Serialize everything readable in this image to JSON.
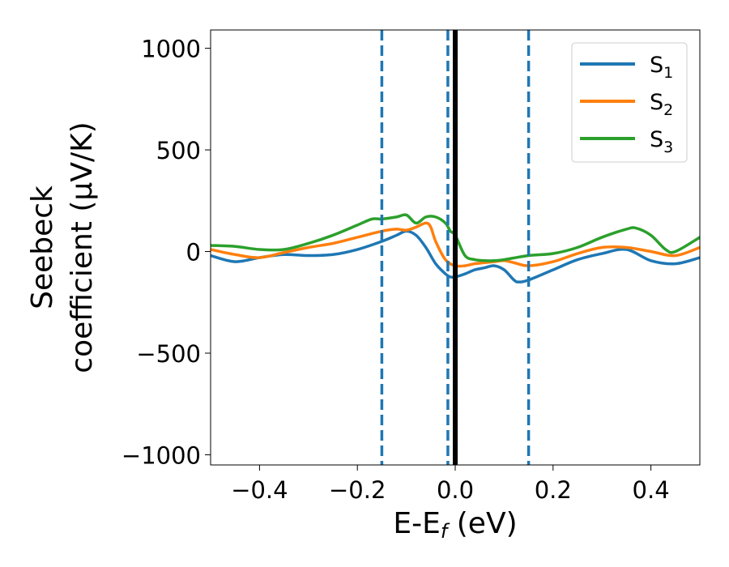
{
  "chart_data": {
    "type": "line",
    "xlabel": {
      "main": "E-E",
      "sub": "f",
      "suffix": " (eV)"
    },
    "ylabel": {
      "line1": "Seebeck",
      "line2": "coefficient  (μV/K)"
    },
    "xlim": [
      -0.5,
      0.5
    ],
    "ylim": [
      -1050,
      1090
    ],
    "xticks": [
      -0.4,
      -0.2,
      0.0,
      0.2,
      0.4
    ],
    "xtick_labels": [
      "−0.4",
      "−0.2",
      "0.0",
      "0.2",
      "0.4"
    ],
    "yticks": [
      -1000,
      -500,
      0,
      500,
      1000
    ],
    "ytick_labels": [
      "−1000",
      "−500",
      "0",
      "500",
      "1000"
    ],
    "legend_position": "top-right",
    "grid": false,
    "vlines": [
      {
        "x": -0.15,
        "style": "dashed",
        "color": "#1f77b4"
      },
      {
        "x": -0.015,
        "style": "dashed",
        "color": "#1f77b4"
      },
      {
        "x": 0.15,
        "style": "dashed",
        "color": "#1f77b4"
      },
      {
        "x": 0.0,
        "style": "solid",
        "color": "#000000"
      }
    ],
    "series": [
      {
        "name": "S",
        "sub": "1",
        "color": "#1f77b4",
        "x": [
          -0.5,
          -0.45,
          -0.4,
          -0.35,
          -0.3,
          -0.25,
          -0.2,
          -0.15,
          -0.12,
          -0.1,
          -0.08,
          -0.06,
          -0.04,
          -0.02,
          -0.01,
          0.0,
          0.02,
          0.04,
          0.06,
          0.08,
          0.1,
          0.12,
          0.13,
          0.15,
          0.2,
          0.25,
          0.3,
          0.35,
          0.4,
          0.45,
          0.5
        ],
        "y": [
          -20,
          -50,
          -30,
          -15,
          -20,
          -15,
          10,
          50,
          80,
          100,
          80,
          20,
          -60,
          -110,
          -125,
          -125,
          -110,
          -90,
          -80,
          -70,
          -90,
          -140,
          -150,
          -140,
          -90,
          -40,
          -10,
          10,
          -45,
          -60,
          -30
        ]
      },
      {
        "name": "S",
        "sub": "2",
        "color": "#ff7f0e",
        "x": [
          -0.5,
          -0.45,
          -0.4,
          -0.35,
          -0.3,
          -0.25,
          -0.2,
          -0.15,
          -0.12,
          -0.1,
          -0.08,
          -0.06,
          -0.05,
          -0.04,
          -0.02,
          0.0,
          0.02,
          0.04,
          0.06,
          0.08,
          0.1,
          0.12,
          0.15,
          0.2,
          0.25,
          0.3,
          0.35,
          0.4,
          0.45,
          0.5
        ],
        "y": [
          10,
          -15,
          -30,
          -5,
          20,
          40,
          70,
          100,
          110,
          105,
          120,
          140,
          120,
          50,
          -40,
          -70,
          -70,
          -60,
          -55,
          -50,
          -45,
          -55,
          -70,
          -50,
          -10,
          20,
          20,
          0,
          -20,
          20
        ]
      },
      {
        "name": "S",
        "sub": "3",
        "color": "#2ca02c",
        "x": [
          -0.5,
          -0.45,
          -0.4,
          -0.35,
          -0.3,
          -0.25,
          -0.2,
          -0.17,
          -0.15,
          -0.12,
          -0.1,
          -0.08,
          -0.06,
          -0.04,
          -0.02,
          -0.01,
          0.0,
          0.02,
          0.04,
          0.06,
          0.08,
          0.1,
          0.15,
          0.2,
          0.25,
          0.3,
          0.35,
          0.37,
          0.4,
          0.43,
          0.45,
          0.5
        ],
        "y": [
          30,
          25,
          10,
          10,
          40,
          80,
          130,
          160,
          160,
          170,
          180,
          140,
          170,
          170,
          140,
          100,
          80,
          -20,
          -40,
          -45,
          -45,
          -40,
          -20,
          -10,
          20,
          70,
          110,
          115,
          80,
          10,
          0,
          70
        ]
      }
    ]
  }
}
